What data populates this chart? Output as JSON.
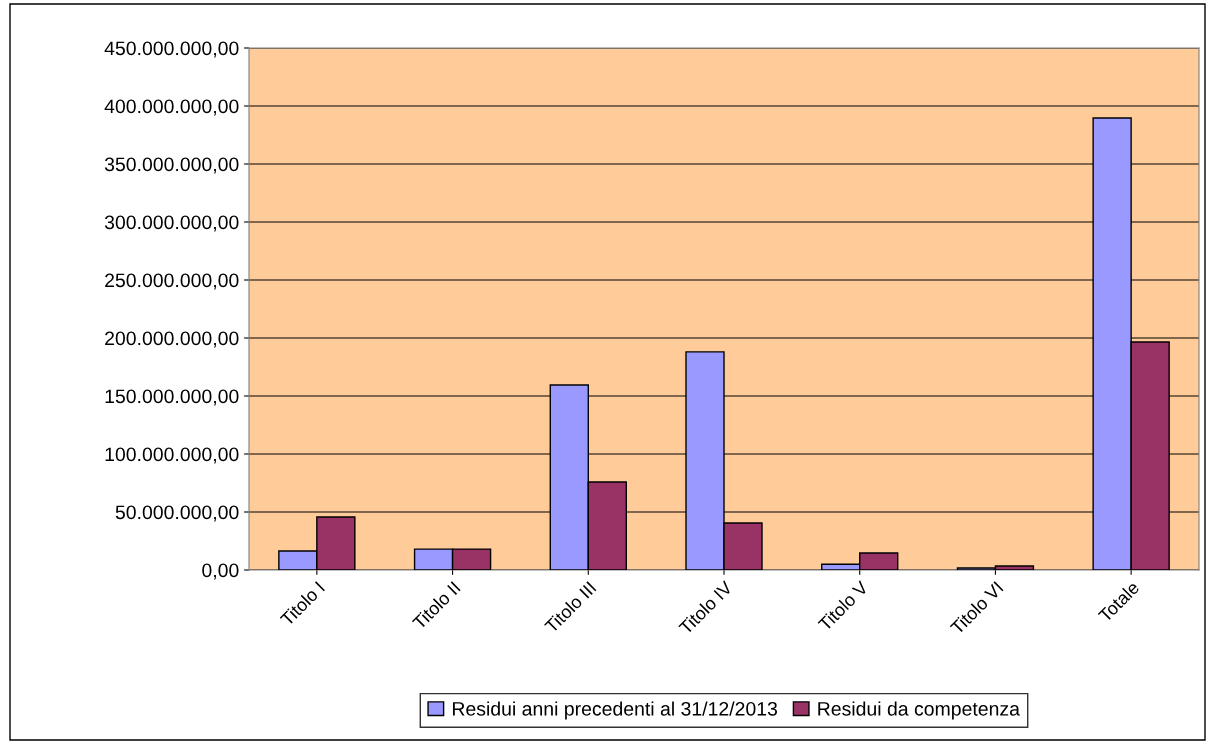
{
  "chart_data": {
    "type": "bar",
    "categories": [
      "Titolo I",
      "Titolo II",
      "Titolo III",
      "Titolo IV",
      "Titolo V",
      "Titolo VI",
      "Totale"
    ],
    "series": [
      {
        "name": "Residui anni precedenti al 31/12/2013",
        "color": "#9999ff",
        "values": [
          16400000,
          18000000,
          159500000,
          188000000,
          5000000,
          1700000,
          389700000
        ]
      },
      {
        "name": "Residui da competenza",
        "color": "#993366",
        "values": [
          45700000,
          18000000,
          75900000,
          40500000,
          14700000,
          3400000,
          196600000
        ]
      }
    ],
    "ylim": [
      0,
      450000000
    ],
    "yticks": [
      {
        "value": 0,
        "label": "0,00"
      },
      {
        "value": 50000000,
        "label": "50.000.000,00"
      },
      {
        "value": 100000000,
        "label": "100.000.000,00"
      },
      {
        "value": 150000000,
        "label": "150.000.000,00"
      },
      {
        "value": 200000000,
        "label": "200.000.000,00"
      },
      {
        "value": 250000000,
        "label": "250.000.000,00"
      },
      {
        "value": 300000000,
        "label": "300.000.000,00"
      },
      {
        "value": 350000000,
        "label": "350.000.000,00"
      },
      {
        "value": 400000000,
        "label": "400.000.000,00"
      },
      {
        "value": 450000000,
        "label": "450.000.000,00"
      }
    ],
    "grid": "y",
    "legend": "bottom"
  }
}
